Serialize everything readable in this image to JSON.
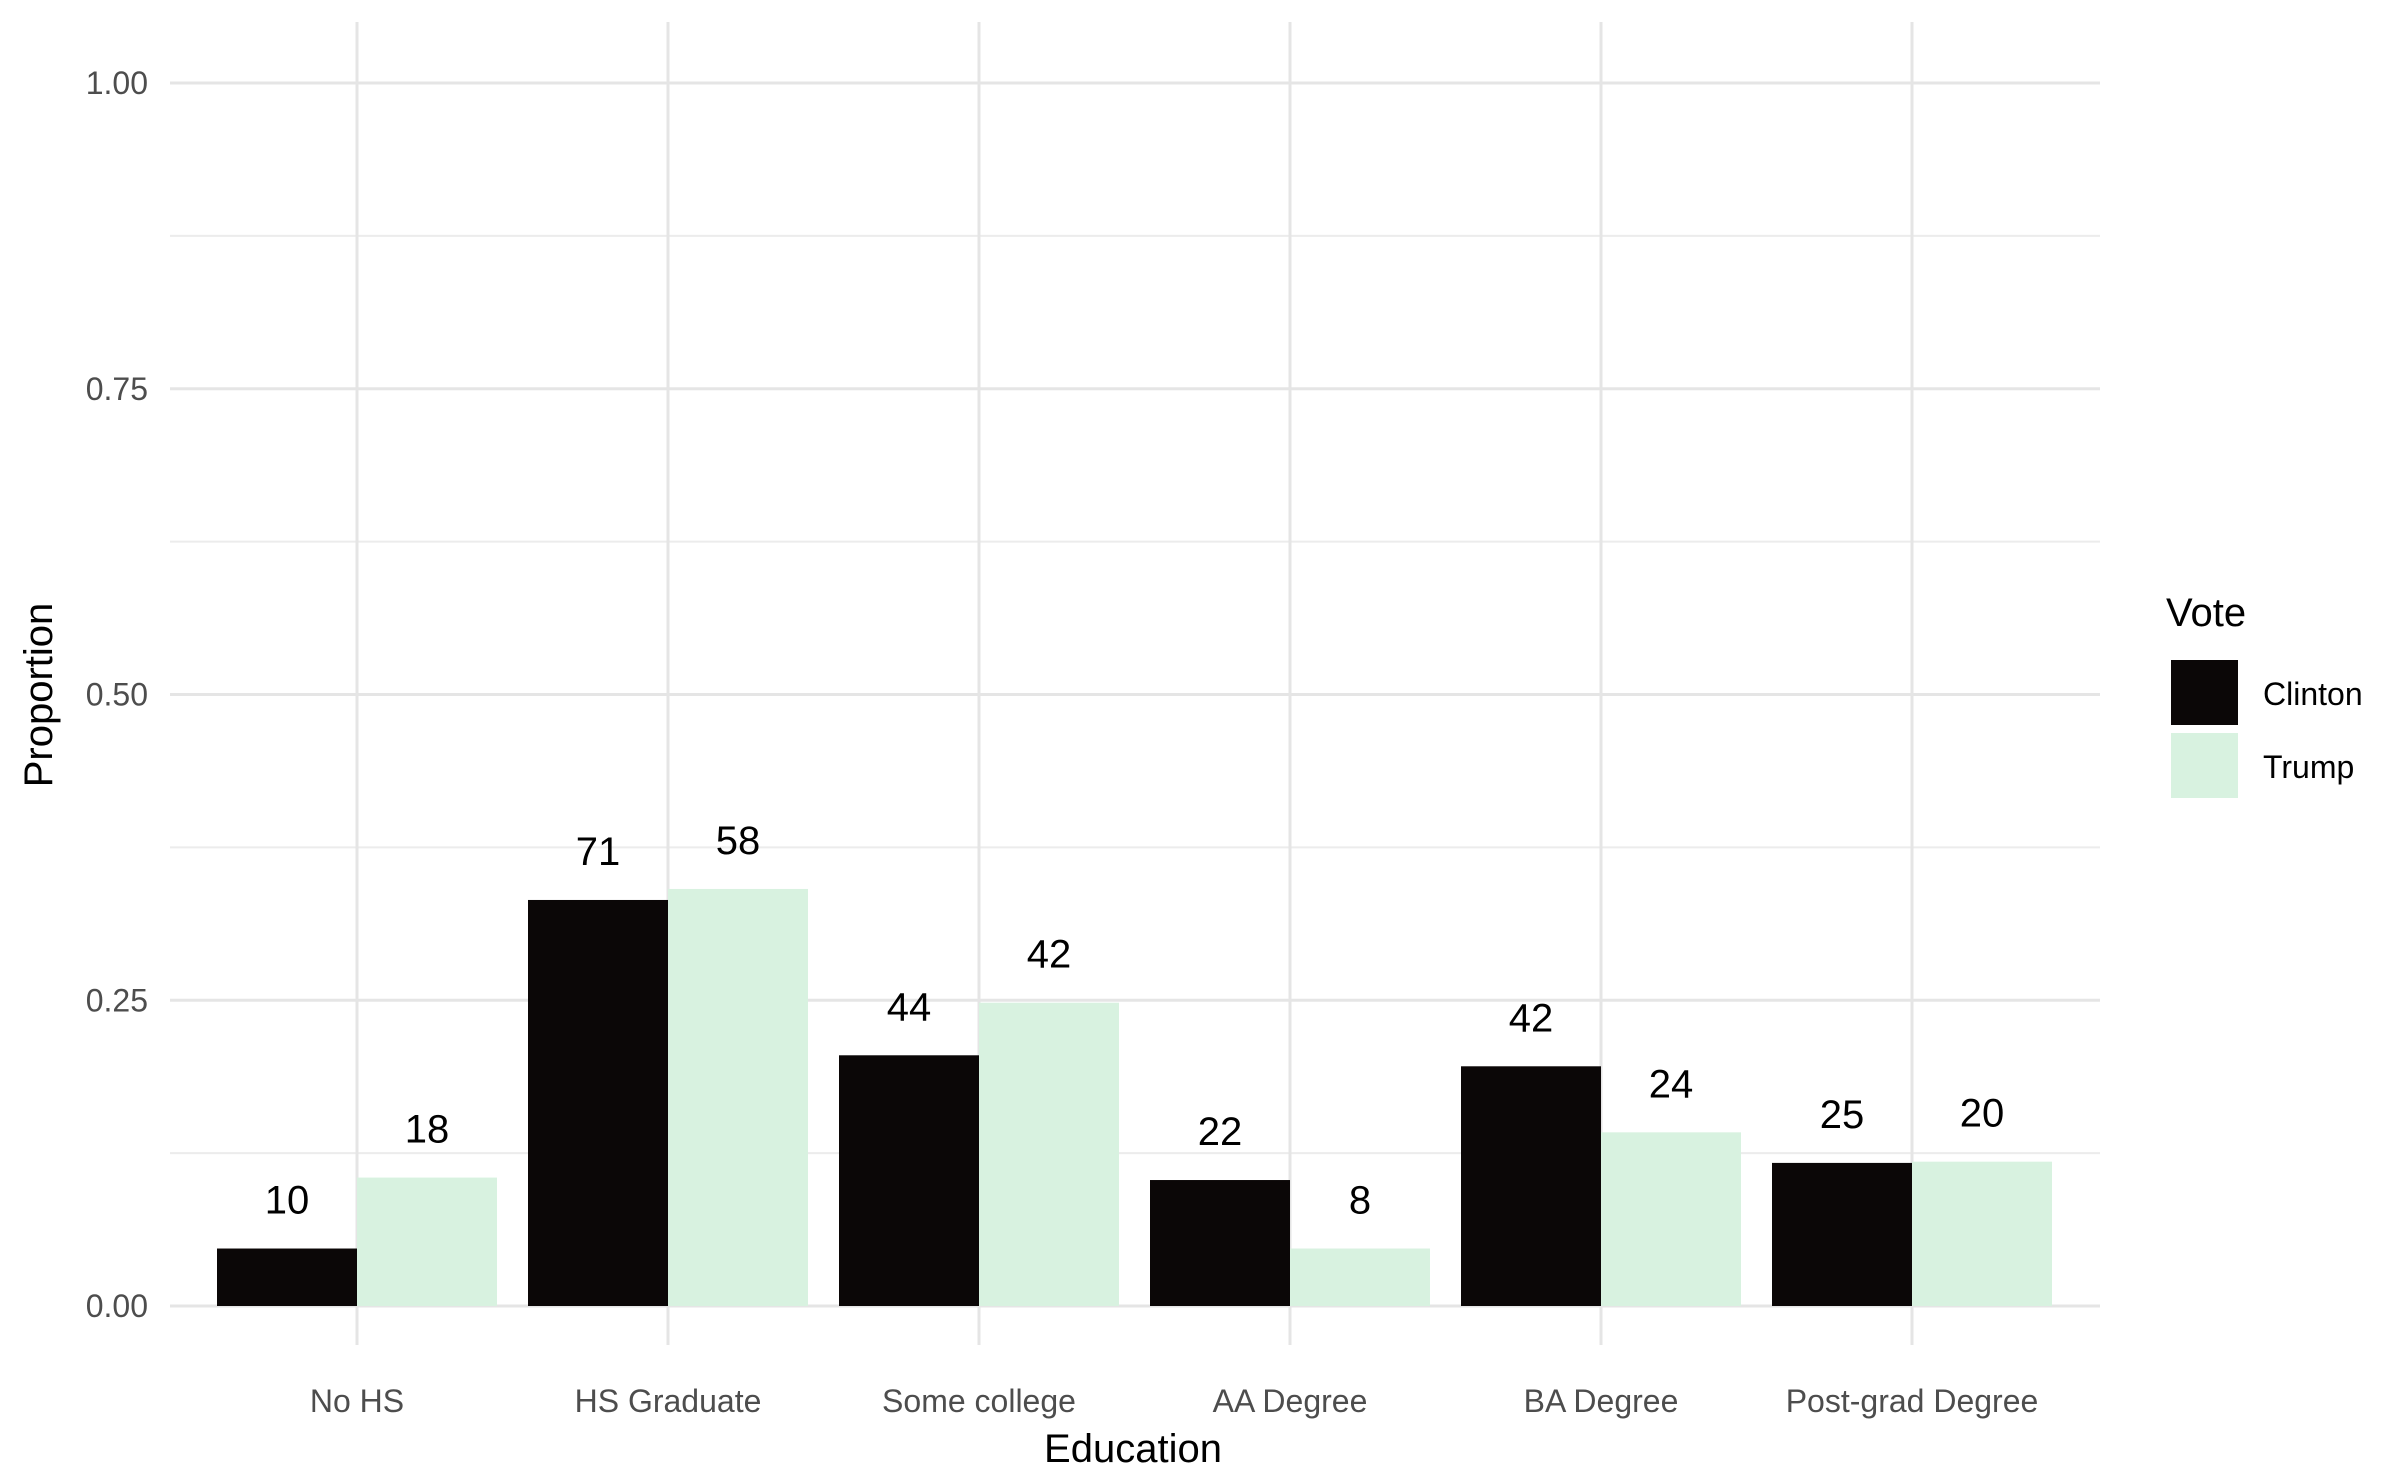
{
  "chart_data": {
    "type": "bar",
    "xlabel": "Education",
    "ylabel": "Proportion",
    "ylim": [
      0,
      1
    ],
    "yticks": [
      "0.00",
      "0.25",
      "0.50",
      "0.75",
      "1.00"
    ],
    "categories": [
      "No HS",
      "HS Graduate",
      "Some college",
      "AA Degree",
      "BA Degree",
      "Post-grad Degree"
    ],
    "series": [
      {
        "name": "Clinton",
        "color": "#0b0707",
        "values": [
          0.047,
          0.332,
          0.205,
          0.103,
          0.196,
          0.117
        ],
        "labels": [
          "10",
          "71",
          "44",
          "22",
          "42",
          "25"
        ]
      },
      {
        "name": "Trump",
        "color": "#d8f2e0",
        "values": [
          0.105,
          0.341,
          0.248,
          0.047,
          0.142,
          0.118
        ],
        "labels": [
          "18",
          "58",
          "42",
          "8",
          "24",
          "20"
        ]
      }
    ],
    "legend": {
      "title": "Vote",
      "position": "right"
    },
    "grid": true
  }
}
